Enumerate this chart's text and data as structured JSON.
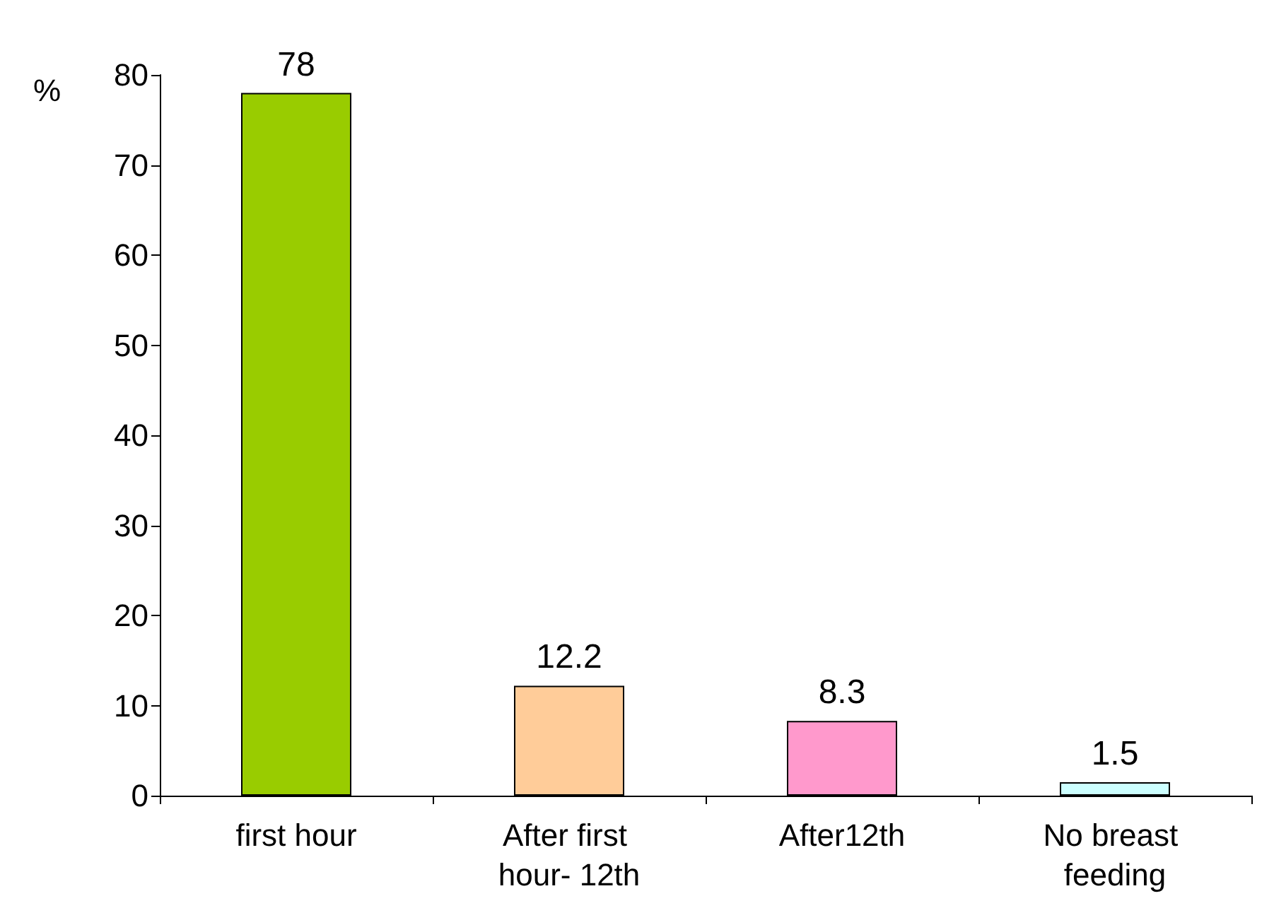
{
  "chart_data": {
    "type": "bar",
    "ylabel": "%",
    "categories": [
      "first hour",
      "After first hour- 12th",
      "After12th",
      "No breast feeding"
    ],
    "values": [
      78,
      12.2,
      8.3,
      1.5
    ],
    "colors": [
      "#99cc00",
      "#ffcc99",
      "#ff99cc",
      "#ccffff"
    ],
    "ylim": [
      0,
      80
    ],
    "yticks": [
      0,
      10,
      20,
      30,
      40,
      50,
      60,
      70,
      80
    ],
    "data_labels": true,
    "grid": false
  }
}
